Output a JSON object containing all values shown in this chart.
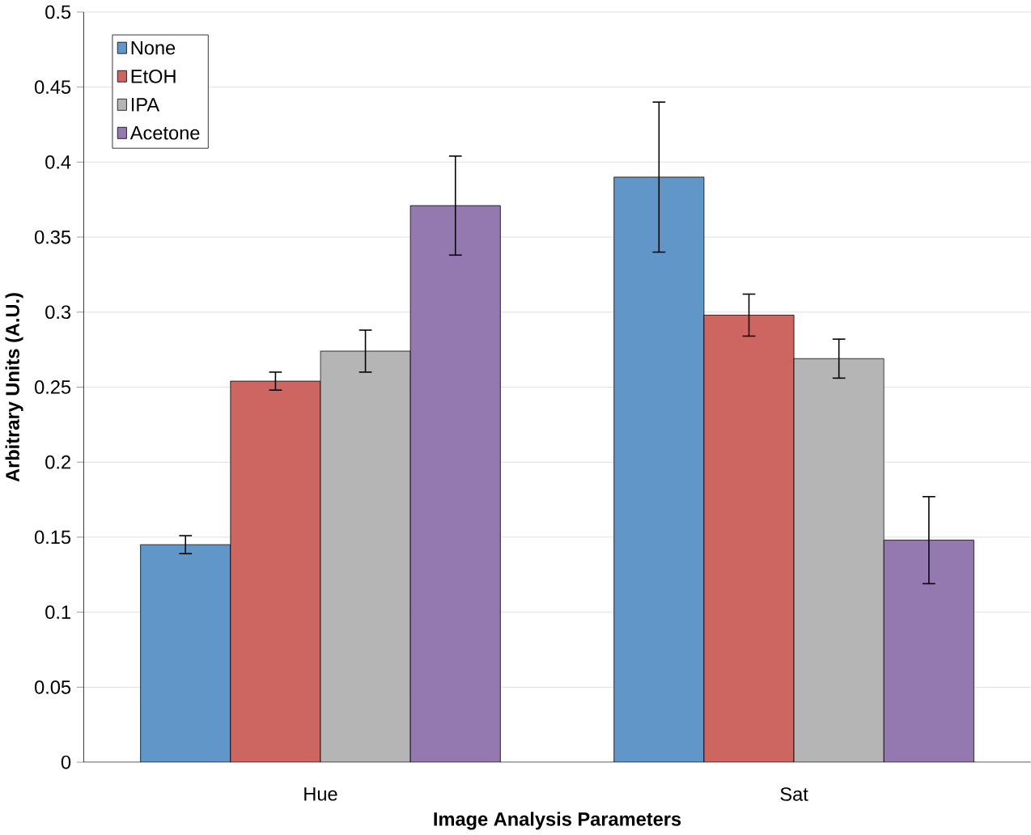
{
  "chart_data": {
    "type": "bar",
    "xlabel": "Image Analysis Parameters",
    "ylabel": "Arbitrary Units (A.U.)",
    "categories": [
      "Hue",
      "Sat"
    ],
    "series": [
      {
        "name": "None",
        "color": "#6096c8",
        "values": [
          0.145,
          0.39
        ],
        "errors": [
          0.006,
          0.05
        ]
      },
      {
        "name": "EtOH",
        "color": "#cd6660",
        "values": [
          0.254,
          0.298
        ],
        "errors": [
          0.006,
          0.014
        ]
      },
      {
        "name": "IPA",
        "color": "#b5b5b5",
        "values": [
          0.274,
          0.269
        ],
        "errors": [
          0.014,
          0.013
        ]
      },
      {
        "name": "Acetone",
        "color": "#9479b0",
        "values": [
          0.371,
          0.148
        ],
        "errors": [
          0.033,
          0.029
        ]
      }
    ],
    "ylim": [
      0,
      0.5
    ],
    "yticks": [
      0,
      0.05,
      0.1,
      0.15,
      0.2,
      0.25,
      0.3,
      0.35,
      0.4,
      0.45,
      0.5
    ],
    "grid": "y",
    "legend": "top left"
  }
}
